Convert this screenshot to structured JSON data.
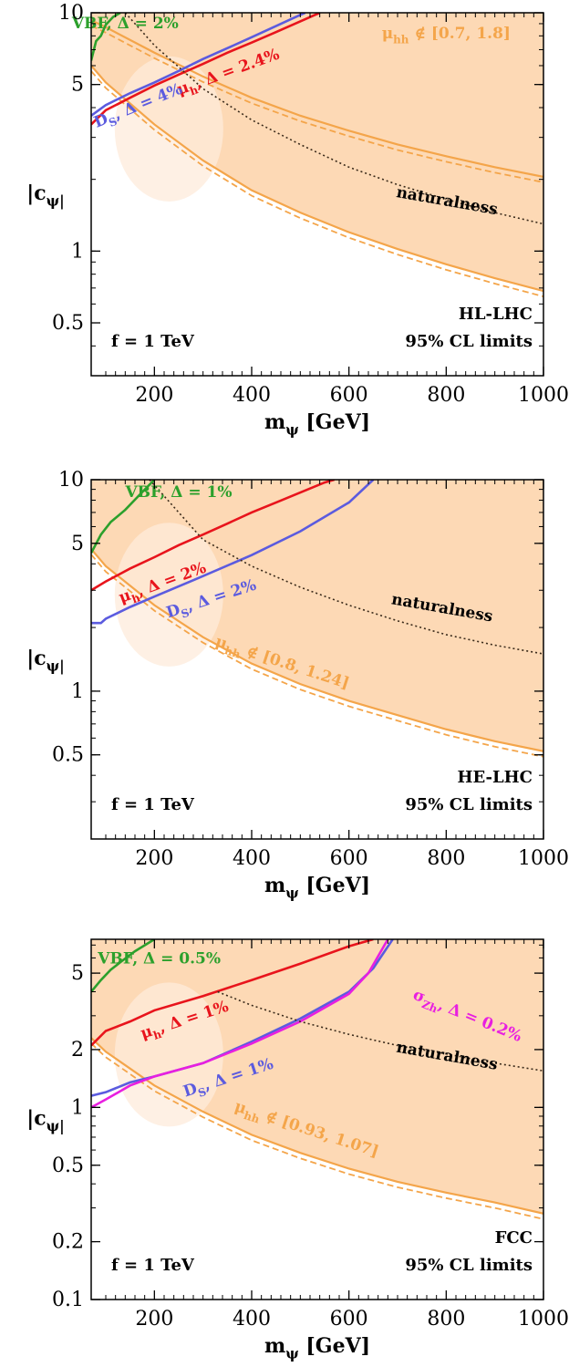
{
  "figure": {
    "xlabel": "m_ψ [GeV]",
    "ylabel": "|c_ψ|",
    "colors": {
      "fill": "#fdd9b5",
      "fill_light": "#fdebdb",
      "orange": "#f4a54a",
      "red": "#e8141c",
      "blue": "#5b5bdf",
      "green": "#2ca02c",
      "magenta": "#e81fe0",
      "naturalness": "#3a2a1a"
    }
  },
  "chart_data": [
    {
      "type": "line",
      "panel": "HL-LHC",
      "xlim": [
        70,
        1000
      ],
      "ylim": [
        0.3,
        10
      ],
      "yscale": "log",
      "xticks": [
        200,
        400,
        600,
        800,
        1000
      ],
      "yticks": [
        0.5,
        1,
        5,
        10
      ],
      "ytick_labels": [
        "0.5",
        "1",
        "5",
        "10"
      ],
      "collider": "HL-LHC",
      "cl_text": "95% CL limits",
      "f_text": "f = 1 TeV",
      "series": [
        {
          "name": "VBF, Δ = 2%",
          "color": "green",
          "label_at": [
            140,
            8.6
          ],
          "label_rot": 0,
          "x": [
            70,
            80,
            90,
            100,
            115,
            130
          ],
          "y": [
            6.3,
            7.6,
            8.0,
            8.9,
            9.6,
            10
          ]
        },
        {
          "name": "μ_h, Δ = 2.4%",
          "color": "red",
          "label_at": [
            355,
            5.4
          ],
          "label_rot": -20,
          "x": [
            70,
            100,
            150,
            200,
            250,
            300,
            350,
            400,
            450,
            500,
            540
          ],
          "y": [
            3.4,
            3.9,
            4.4,
            4.95,
            5.5,
            6.1,
            6.8,
            7.5,
            8.3,
            9.2,
            10
          ]
        },
        {
          "name": "D_S, Δ = 4%",
          "color": "blue",
          "label_at": [
            170,
            3.9
          ],
          "label_rot": -22,
          "x": [
            70,
            100,
            150,
            200,
            250,
            300,
            350,
            400,
            450,
            500,
            510
          ],
          "y": [
            3.7,
            4.1,
            4.6,
            5.1,
            5.7,
            6.4,
            7.1,
            7.9,
            8.8,
            9.8,
            10
          ]
        },
        {
          "name": "naturalness",
          "color": "naturalness",
          "dashed": true,
          "label_at": [
            800,
            1.55
          ],
          "label_rot": 10,
          "x": [
            140,
            200,
            300,
            400,
            500,
            600,
            700,
            800,
            900,
            1000
          ],
          "y": [
            10,
            7.3,
            4.8,
            3.55,
            2.8,
            2.25,
            1.9,
            1.65,
            1.45,
            1.3
          ]
        },
        {
          "name": "μ_hh ∉ [0.7, 1.8]",
          "color": "orange",
          "label_at": [
            800,
            7.8
          ],
          "label_rot": 0,
          "x": [
            70,
            100,
            200,
            300,
            400,
            500,
            600,
            700,
            800,
            900,
            1000
          ],
          "y": [
            6.0,
            5.1,
            3.4,
            2.4,
            1.8,
            1.45,
            1.2,
            1.02,
            0.88,
            0.77,
            0.68
          ]
        },
        {
          "name": "",
          "color": "orange",
          "x": [
            70,
            100,
            200,
            300,
            400,
            500,
            600,
            700,
            800,
            900,
            1000
          ],
          "y": [
            9.3,
            8.7,
            6.8,
            5.4,
            4.4,
            3.7,
            3.2,
            2.8,
            2.5,
            2.25,
            2.05
          ]
        }
      ]
    },
    {
      "type": "line",
      "panel": "HE-LHC",
      "xlim": [
        70,
        1000
      ],
      "ylim": [
        0.2,
        10
      ],
      "yscale": "log",
      "xticks": [
        200,
        400,
        600,
        800,
        1000
      ],
      "yticks": [
        0.5,
        1,
        5,
        10
      ],
      "ytick_labels": [
        "0.5",
        "1",
        "5",
        "10"
      ],
      "collider": "HE-LHC",
      "cl_text": "95% CL limits",
      "f_text": "f = 1 TeV",
      "series": [
        {
          "name": "VBF, Δ = 1%",
          "color": "green",
          "label_at": [
            250,
            8.3
          ],
          "label_rot": 0,
          "x": [
            70,
            90,
            110,
            140,
            170,
            200
          ],
          "y": [
            4.5,
            5.5,
            6.3,
            7.2,
            8.5,
            10
          ]
        },
        {
          "name": "μ_h, Δ = 2%",
          "color": "red",
          "label_at": [
            220,
            3.1
          ],
          "label_rot": -20,
          "x": [
            70,
            100,
            150,
            200,
            250,
            300,
            350,
            400,
            450,
            500,
            550,
            570
          ],
          "y": [
            3.0,
            3.3,
            3.8,
            4.3,
            4.9,
            5.5,
            6.2,
            7.0,
            7.8,
            8.7,
            9.7,
            10
          ]
        },
        {
          "name": "D_S, Δ = 2%",
          "color": "blue",
          "label_at": [
            320,
            2.6
          ],
          "label_rot": -18,
          "x": [
            70,
            90,
            100,
            150,
            200,
            300,
            400,
            500,
            600,
            650
          ],
          "y": [
            2.1,
            2.1,
            2.2,
            2.5,
            2.8,
            3.5,
            4.4,
            5.7,
            7.8,
            10
          ]
        },
        {
          "name": "naturalness",
          "color": "naturalness",
          "dashed": true,
          "label_at": [
            790,
            2.35
          ],
          "label_rot": 10,
          "x": [
            190,
            300,
            400,
            500,
            600,
            700,
            800,
            900,
            1000
          ],
          "y": [
            10,
            5.2,
            3.9,
            3.1,
            2.55,
            2.15,
            1.85,
            1.65,
            1.5
          ]
        },
        {
          "name": "μ_hh ∉ [0.8, 1.24]",
          "color": "orange",
          "label_at": [
            460,
            1.3
          ],
          "label_rot": 18,
          "x": [
            70,
            100,
            200,
            300,
            400,
            500,
            600,
            700,
            800,
            900,
            1000
          ],
          "y": [
            4.7,
            3.9,
            2.55,
            1.8,
            1.35,
            1.08,
            0.9,
            0.77,
            0.66,
            0.58,
            0.52
          ]
        }
      ]
    },
    {
      "type": "line",
      "panel": "FCC",
      "xlim": [
        70,
        1000
      ],
      "ylim": [
        0.1,
        7.5
      ],
      "yscale": "log",
      "xticks": [
        200,
        400,
        600,
        800,
        1000
      ],
      "yticks": [
        0.1,
        0.2,
        0.5,
        1,
        2,
        5
      ],
      "ytick_labels": [
        "0.1",
        "0.2",
        "0.5",
        "1",
        "2",
        "5"
      ],
      "collider": "FCC",
      "cl_text": "95% CL limits",
      "f_text": "f = 1 TeV",
      "series": [
        {
          "name": "VBF, Δ = 0.5%",
          "color": "green",
          "label_at": [
            210,
            5.6
          ],
          "label_rot": 0,
          "x": [
            70,
            90,
            110,
            130,
            160,
            200
          ],
          "y": [
            4.0,
            4.6,
            5.2,
            5.7,
            6.5,
            7.5
          ]
        },
        {
          "name": "μ_h, Δ = 1%",
          "color": "red",
          "label_at": [
            265,
            2.7
          ],
          "label_rot": -18,
          "x": [
            70,
            100,
            150,
            200,
            300,
            400,
            500,
            600,
            650
          ],
          "y": [
            2.1,
            2.5,
            2.8,
            3.2,
            3.8,
            4.6,
            5.6,
            6.9,
            7.5
          ]
        },
        {
          "name": "D_S, Δ = 1%",
          "color": "blue",
          "label_at": [
            355,
            1.35
          ],
          "label_rot": -18,
          "x": [
            70,
            100,
            150,
            200,
            300,
            400,
            500,
            600,
            650,
            690
          ],
          "y": [
            1.15,
            1.2,
            1.35,
            1.45,
            1.7,
            2.2,
            2.9,
            4.0,
            5.3,
            7.5
          ]
        },
        {
          "name": "σ_Zh, Δ = 0.2%",
          "color": "magenta",
          "label_at": [
            840,
            2.85
          ],
          "label_rot": 22,
          "x": [
            70,
            100,
            150,
            200,
            300,
            400,
            500,
            600,
            640,
            680
          ],
          "y": [
            1.0,
            1.1,
            1.3,
            1.45,
            1.7,
            2.15,
            2.8,
            3.9,
            5.0,
            7.5
          ]
        },
        {
          "name": "naturalness",
          "color": "naturalness",
          "dashed": true,
          "label_at": [
            800,
            1.75
          ],
          "label_rot": 10,
          "x": [
            330,
            400,
            500,
            600,
            700,
            800,
            900,
            1000
          ],
          "y": [
            4.0,
            3.4,
            2.8,
            2.4,
            2.1,
            1.9,
            1.7,
            1.55
          ]
        },
        {
          "name": "μ_hh ∉ [0.93, 1.07]",
          "color": "orange",
          "label_at": [
            510,
            0.73
          ],
          "label_rot": 18,
          "x": [
            70,
            100,
            200,
            300,
            400,
            500,
            600,
            700,
            800,
            900,
            1000
          ],
          "y": [
            2.3,
            1.95,
            1.3,
            0.95,
            0.72,
            0.58,
            0.48,
            0.41,
            0.36,
            0.32,
            0.28
          ]
        }
      ]
    }
  ]
}
